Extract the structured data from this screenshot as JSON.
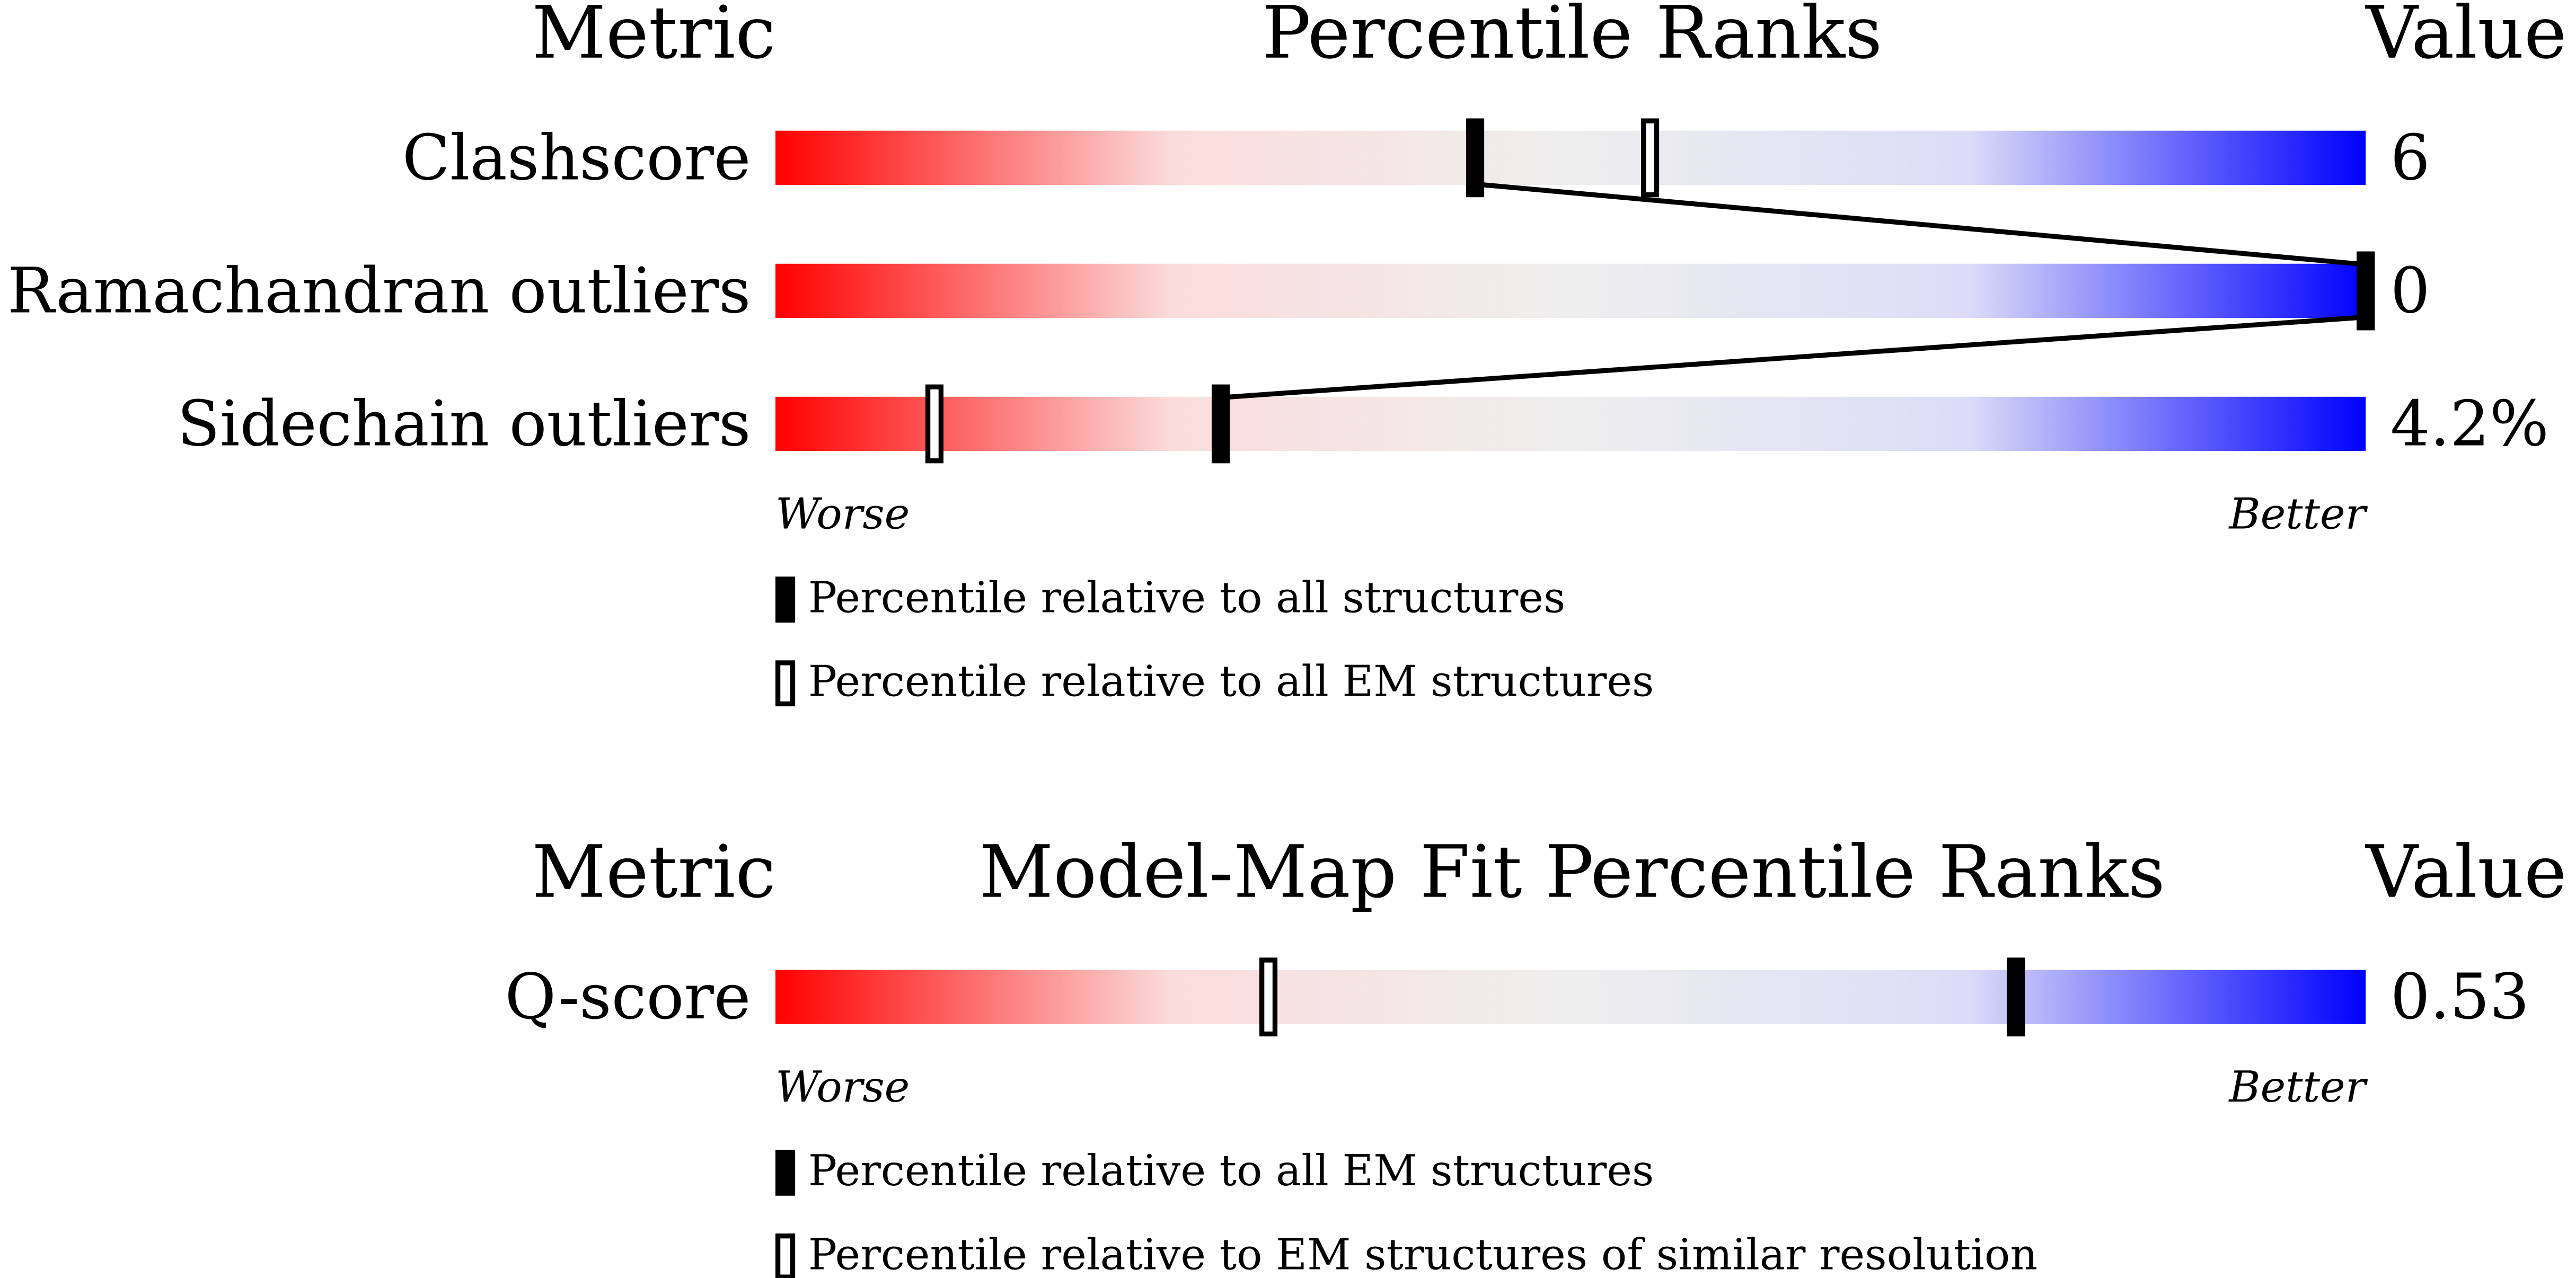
{
  "chart_data": [
    {
      "type": "slider",
      "column_headers": {
        "metric": "Metric",
        "title": "Percentile Ranks",
        "value": "Value"
      },
      "categories": [
        "Clashscore",
        "Ramachandran outliers",
        "Sidechain outliers"
      ],
      "metric_values": [
        "6",
        "0",
        "4.2%"
      ],
      "series": [
        {
          "name": "Percentile relative to all structures",
          "color": "#000000",
          "marker": "filled",
          "values": [
            44,
            100,
            28
          ]
        },
        {
          "name": "Percentile relative to all EM structures",
          "color": "#000000",
          "marker": "open",
          "values": [
            55,
            100,
            10
          ]
        }
      ],
      "axis_labels": {
        "low": "Worse",
        "high": "Better"
      },
      "xlim": [
        0,
        100
      ],
      "gradient": [
        "#ff0000",
        "#fbdcdc",
        "#eeeeee",
        "#dcdcf8",
        "#0000ff"
      ]
    },
    {
      "type": "slider",
      "column_headers": {
        "metric": "Metric",
        "title": "Model-Map Fit Percentile Ranks",
        "value": "Value"
      },
      "categories": [
        "Q-score"
      ],
      "metric_values": [
        "0.53"
      ],
      "series": [
        {
          "name": "Percentile relative to all EM structures",
          "color": "#000000",
          "marker": "filled",
          "values": [
            78
          ]
        },
        {
          "name": "Percentile relative to EM structures of similar resolution",
          "color": "#000000",
          "marker": "open",
          "values": [
            31
          ]
        }
      ],
      "axis_labels": {
        "low": "Worse",
        "high": "Better"
      },
      "xlim": [
        0,
        100
      ],
      "gradient": [
        "#ff0000",
        "#fbdcdc",
        "#eeeeee",
        "#dcdcf8",
        "#0000ff"
      ]
    }
  ]
}
